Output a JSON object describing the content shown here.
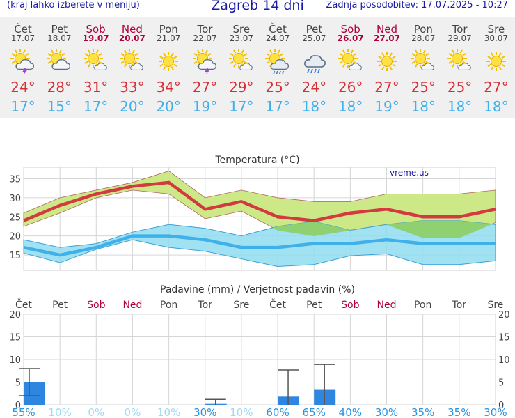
{
  "header": {
    "hint": "(kraj lahko izberete v meniju)",
    "title": "Zagreb 14 dni",
    "updated": "Zadnja posodobitev: 17.07.2025 - 10:27"
  },
  "days": [
    {
      "name": "Čet",
      "date": "17.07",
      "weekend": false,
      "icon": "sun-cloud-thunder-icon",
      "max": "24°",
      "min": "17°"
    },
    {
      "name": "Pet",
      "date": "18.07",
      "weekend": false,
      "icon": "sun-cloud-icon",
      "max": "28°",
      "min": "15°"
    },
    {
      "name": "Sob",
      "date": "19.07",
      "weekend": true,
      "icon": "sun-small-cloud-icon",
      "max": "31°",
      "min": "17°"
    },
    {
      "name": "Ned",
      "date": "20.07",
      "weekend": true,
      "icon": "sun-small-cloud-icon",
      "max": "33°",
      "min": "20°"
    },
    {
      "name": "Pon",
      "date": "21.07",
      "weekend": false,
      "icon": "sun-icon",
      "max": "34°",
      "min": "20°"
    },
    {
      "name": "Tor",
      "date": "22.07",
      "weekend": false,
      "icon": "sun-cloud-thunder-icon",
      "max": "27°",
      "min": "19°"
    },
    {
      "name": "Sre",
      "date": "23.07",
      "weekend": false,
      "icon": "sun-small-cloud-icon",
      "max": "29°",
      "min": "17°"
    },
    {
      "name": "Čet",
      "date": "24.07",
      "weekend": false,
      "icon": "sun-cloud-rain-icon",
      "max": "25°",
      "min": "17°"
    },
    {
      "name": "Pet",
      "date": "25.07",
      "weekend": false,
      "icon": "cloud-rain-icon",
      "max": "24°",
      "min": "18°"
    },
    {
      "name": "Sob",
      "date": "26.07",
      "weekend": true,
      "icon": "sun-small-cloud-icon",
      "max": "26°",
      "min": "18°"
    },
    {
      "name": "Ned",
      "date": "27.07",
      "weekend": true,
      "icon": "sun-icon",
      "max": "27°",
      "min": "19°"
    },
    {
      "name": "Pon",
      "date": "28.07",
      "weekend": false,
      "icon": "sun-small-cloud-icon",
      "max": "25°",
      "min": "18°"
    },
    {
      "name": "Tor",
      "date": "29.07",
      "weekend": false,
      "icon": "sun-small-cloud-icon",
      "max": "25°",
      "min": "18°"
    },
    {
      "name": "Sre",
      "date": "30.07",
      "weekend": false,
      "icon": "sun-icon",
      "max": "27°",
      "min": "18°"
    }
  ],
  "chart_data": [
    {
      "type": "line",
      "title": "Temperatura (°C)",
      "watermark": "vreme.us",
      "x": [
        "17.07",
        "18.07",
        "19.07",
        "20.07",
        "21.07",
        "22.07",
        "23.07",
        "24.07",
        "25.07",
        "26.07",
        "27.07",
        "28.07",
        "29.07",
        "30.07"
      ],
      "ylim": [
        11,
        38
      ],
      "yticks": [
        15,
        20,
        25,
        30,
        35
      ],
      "grid": true,
      "series": [
        {
          "values": [
            24,
            28,
            31,
            33,
            34,
            27,
            29,
            25,
            24,
            26,
            27,
            25,
            25,
            27
          ],
          "band_low": [
            22.5,
            26,
            30,
            32,
            31,
            24.5,
            26.5,
            21.5,
            20,
            21.5,
            23,
            19.5,
            19.5,
            23.5
          ],
          "band_high": [
            26,
            30,
            32,
            34,
            37,
            30,
            32,
            30,
            29,
            29,
            31,
            31,
            31,
            32
          ]
        },
        {
          "values": [
            17,
            15,
            17,
            20,
            20,
            19,
            17,
            17,
            18,
            18,
            19,
            18,
            18,
            18
          ],
          "band_low": [
            15.5,
            13,
            16.5,
            19,
            17,
            16,
            14,
            12,
            12.5,
            14.8,
            15.3,
            12.5,
            12.5,
            13.5
          ],
          "band_high": [
            19,
            17,
            18,
            21,
            23,
            22,
            20,
            22.5,
            23.8,
            21.5,
            23,
            24,
            24,
            23
          ]
        }
      ],
      "colors": {
        "max_line": "#d23a40",
        "max_band": "#cde886",
        "min_line": "#3fb0ea",
        "min_band": "#8fdcf0",
        "overlap": "#8fd070"
      }
    },
    {
      "type": "bar",
      "title": "Padavine (mm) / Verjetnost padavin (%)",
      "categories": [
        "Čet",
        "Pet",
        "Sob",
        "Ned",
        "Pon",
        "Tor",
        "Sre",
        "Čet",
        "Pet",
        "Sob",
        "Ned",
        "Pon",
        "Tor",
        "Sre"
      ],
      "category_weekend": [
        false,
        false,
        true,
        true,
        false,
        false,
        false,
        false,
        false,
        true,
        true,
        false,
        false,
        false
      ],
      "values": [
        5.0,
        0,
        0,
        0,
        0,
        0.2,
        0,
        1.8,
        3.3,
        0,
        0,
        0,
        0,
        0
      ],
      "error_low": [
        2.0,
        null,
        null,
        null,
        null,
        0,
        null,
        0,
        0,
        null,
        null,
        null,
        null,
        null
      ],
      "error_high": [
        8.0,
        null,
        null,
        null,
        null,
        1.2,
        null,
        7.7,
        8.9,
        null,
        null,
        null,
        null,
        null
      ],
      "probability": [
        "55%",
        "10%",
        "0%",
        "0%",
        "10%",
        "30%",
        "10%",
        "60%",
        "65%",
        "40%",
        "30%",
        "35%",
        "35%",
        "30%"
      ],
      "probability_strong": [
        true,
        false,
        false,
        false,
        false,
        true,
        false,
        true,
        true,
        true,
        true,
        true,
        true,
        true
      ],
      "ylim": [
        0,
        20
      ],
      "yticks": [
        0,
        5,
        10,
        15,
        20
      ],
      "grid": true,
      "colors": {
        "bar": "#2f86e0",
        "error": "#555555",
        "prob_strong": "#2a93e0",
        "prob_weak": "#9ed9f5"
      }
    }
  ]
}
